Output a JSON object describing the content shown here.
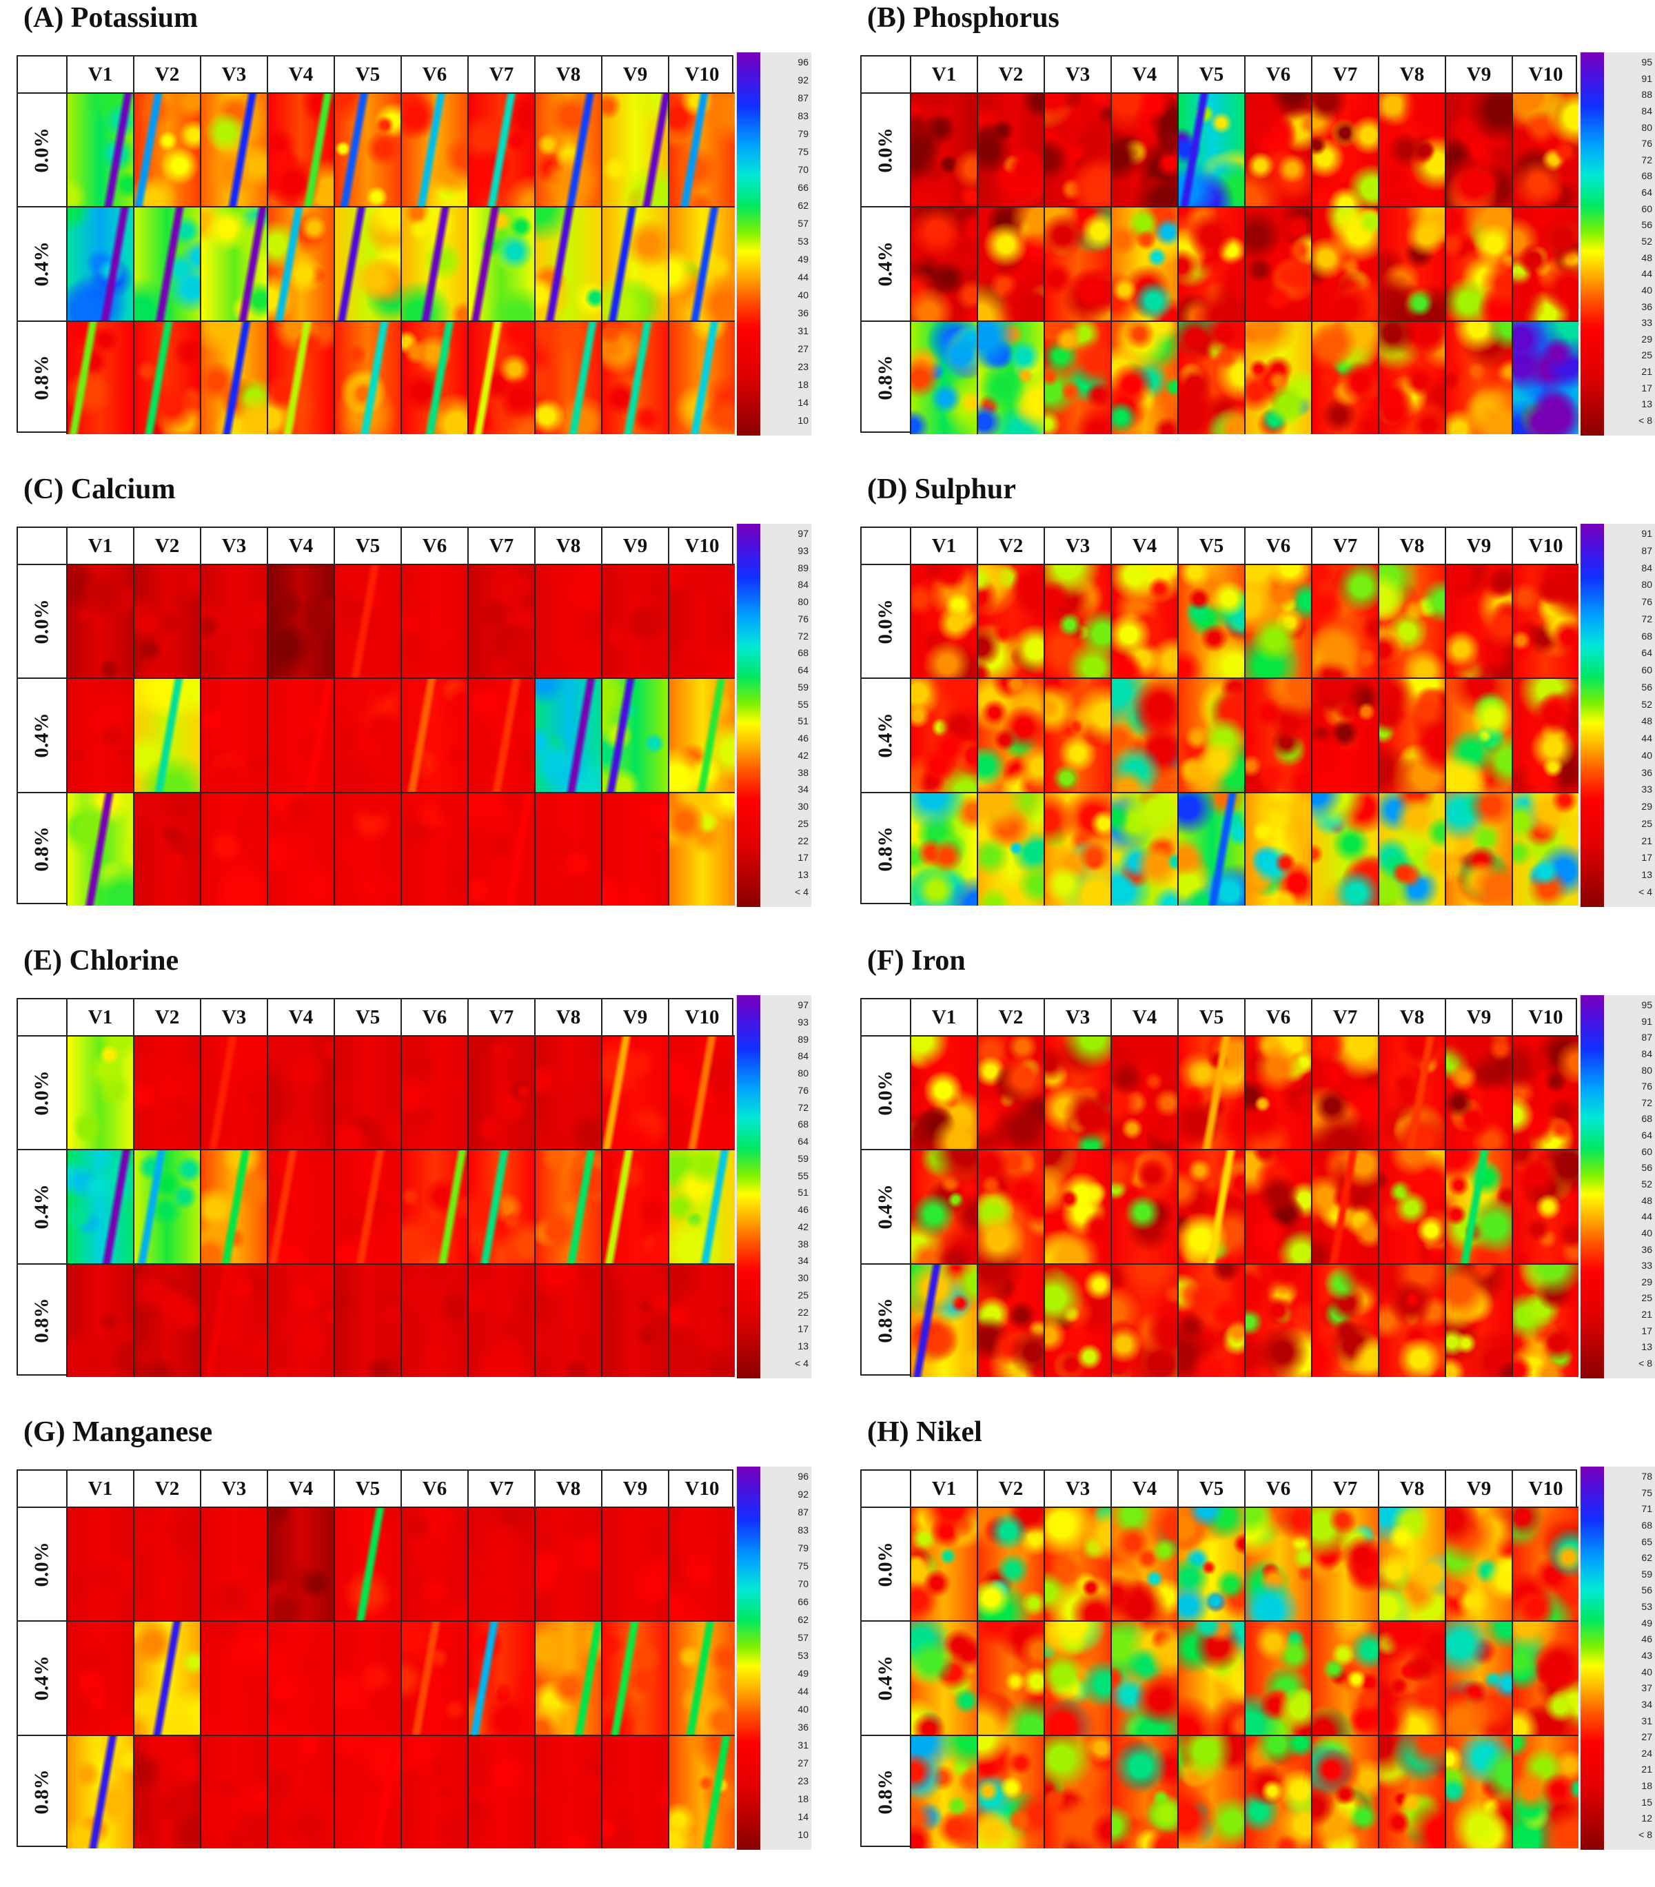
{
  "columns": [
    "V1",
    "V2",
    "V3",
    "V4",
    "V5",
    "V6",
    "V7",
    "V8",
    "V9",
    "V10"
  ],
  "rows": [
    "0.0%",
    "0.4%",
    "0.8%"
  ],
  "panels": [
    {
      "title": "(A) Potassium",
      "scale": [
        "96",
        "92",
        "87",
        "83",
        "79",
        "75",
        "70",
        "66",
        "62",
        "57",
        "53",
        "49",
        "44",
        "40",
        "36",
        "31",
        "27",
        "23",
        "18",
        "14",
        "10"
      ],
      "cells": [
        [
          0.6,
          0.38,
          0.42,
          0.32,
          0.38,
          0.4,
          0.3,
          0.4,
          0.48,
          0.38
        ],
        [
          0.72,
          0.58,
          0.55,
          0.4,
          0.5,
          0.48,
          0.55,
          0.5,
          0.48,
          0.45
        ],
        [
          0.3,
          0.3,
          0.42,
          0.32,
          0.36,
          0.32,
          0.3,
          0.34,
          0.34,
          0.38
        ]
      ],
      "stripes": [
        [
          0.7,
          0.7,
          0.8,
          0.5,
          0.8,
          0.6,
          0.7,
          0.8,
          0.9,
          0.7
        ],
        [
          0.9,
          0.9,
          0.8,
          0.6,
          0.8,
          0.9,
          0.9,
          0.8,
          0.7,
          0.7
        ],
        [
          0.5,
          0.6,
          0.8,
          0.4,
          0.6,
          0.6,
          0.4,
          0.6,
          0.6,
          0.6
        ]
      ],
      "texture": 0.1
    },
    {
      "title": "(B) Phosphorus",
      "scale": [
        "95",
        "91",
        "88",
        "84",
        "80",
        "76",
        "72",
        "68",
        "64",
        "60",
        "56",
        "52",
        "48",
        "44",
        "40",
        "36",
        "33",
        "29",
        "25",
        "21",
        "17",
        "13",
        "< 8"
      ],
      "cells": [
        [
          0.12,
          0.14,
          0.16,
          0.16,
          0.68,
          0.18,
          0.26,
          0.26,
          0.14,
          0.2
        ],
        [
          0.14,
          0.2,
          0.34,
          0.44,
          0.28,
          0.2,
          0.24,
          0.28,
          0.32,
          0.22
        ],
        [
          0.6,
          0.58,
          0.34,
          0.4,
          0.32,
          0.48,
          0.3,
          0.3,
          0.32,
          0.78
        ]
      ],
      "stripes": [
        [
          0,
          0,
          0,
          0,
          0.4,
          0,
          0,
          0,
          0,
          0
        ],
        [
          0,
          0,
          0,
          0,
          0,
          0,
          0,
          0,
          0,
          0
        ],
        [
          0,
          0,
          0,
          0,
          0,
          0,
          0,
          0,
          0,
          0
        ]
      ],
      "texture": 0.22
    },
    {
      "title": "(C) Calcium",
      "scale": [
        "97",
        "93",
        "89",
        "84",
        "80",
        "76",
        "72",
        "68",
        "64",
        "59",
        "55",
        "51",
        "46",
        "42",
        "38",
        "34",
        "30",
        "25",
        "22",
        "17",
        "13",
        "< 4"
      ],
      "cells": [
        [
          0.12,
          0.12,
          0.15,
          0.05,
          0.2,
          0.2,
          0.14,
          0.18,
          0.16,
          0.16
        ],
        [
          0.2,
          0.5,
          0.22,
          0.22,
          0.22,
          0.26,
          0.22,
          0.7,
          0.6,
          0.44
        ],
        [
          0.56,
          0.16,
          0.22,
          0.22,
          0.22,
          0.22,
          0.22,
          0.22,
          0.22,
          0.44
        ]
      ],
      "stripes": [
        [
          0,
          0,
          0,
          0,
          0.2,
          0,
          0,
          0,
          0,
          0
        ],
        [
          0,
          0.3,
          0,
          0.1,
          0,
          0.2,
          0.2,
          0.6,
          0.6,
          0.3
        ],
        [
          0.9,
          0,
          0,
          0,
          0,
          0,
          0.1,
          0,
          0,
          0
        ]
      ],
      "texture": 0.06
    },
    {
      "title": "(D) Sulphur",
      "scale": [
        "91",
        "87",
        "84",
        "80",
        "76",
        "72",
        "68",
        "64",
        "60",
        "56",
        "52",
        "48",
        "44",
        "40",
        "36",
        "33",
        "29",
        "25",
        "21",
        "17",
        "13",
        "< 4"
      ],
      "cells": [
        [
          0.26,
          0.28,
          0.3,
          0.28,
          0.4,
          0.38,
          0.34,
          0.34,
          0.26,
          0.3
        ],
        [
          0.3,
          0.38,
          0.34,
          0.42,
          0.38,
          0.3,
          0.24,
          0.32,
          0.4,
          0.26
        ],
        [
          0.54,
          0.48,
          0.46,
          0.52,
          0.6,
          0.46,
          0.5,
          0.5,
          0.44,
          0.5
        ]
      ],
      "stripes": [
        [
          0,
          0,
          0,
          0,
          0,
          0,
          0,
          0,
          0,
          0
        ],
        [
          0,
          0,
          0,
          0,
          0,
          0,
          0,
          0,
          0,
          0
        ],
        [
          0,
          0,
          0,
          0,
          0.4,
          0,
          0,
          0,
          0,
          0
        ]
      ],
      "texture": 0.2
    },
    {
      "title": "(E) Chlorine",
      "scale": [
        "97",
        "93",
        "89",
        "84",
        "80",
        "76",
        "72",
        "68",
        "64",
        "59",
        "55",
        "51",
        "46",
        "42",
        "38",
        "34",
        "30",
        "25",
        "22",
        "17",
        "13",
        "< 4"
      ],
      "cells": [
        [
          0.55,
          0.18,
          0.2,
          0.14,
          0.16,
          0.18,
          0.14,
          0.16,
          0.26,
          0.22
        ],
        [
          0.68,
          0.58,
          0.4,
          0.22,
          0.22,
          0.3,
          0.32,
          0.36,
          0.26,
          0.5
        ],
        [
          0.14,
          0.12,
          0.16,
          0.16,
          0.14,
          0.16,
          0.16,
          0.16,
          0.14,
          0.16
        ]
      ],
      "stripes": [
        [
          0,
          0,
          0.2,
          0,
          0,
          0,
          0,
          0,
          0.3,
          0.3
        ],
        [
          0.9,
          0.3,
          0.4,
          0.2,
          0.2,
          0.5,
          0.6,
          0.5,
          0.5,
          0.4
        ],
        [
          0,
          0,
          0.1,
          0,
          0,
          0,
          0,
          0,
          0,
          0
        ]
      ],
      "texture": 0.06
    },
    {
      "title": "(F) Iron",
      "scale": [
        "95",
        "91",
        "87",
        "84",
        "80",
        "76",
        "72",
        "68",
        "64",
        "60",
        "56",
        "52",
        "48",
        "44",
        "40",
        "36",
        "33",
        "29",
        "25",
        "21",
        "17",
        "13",
        "< 8"
      ],
      "cells": [
        [
          0.26,
          0.22,
          0.3,
          0.18,
          0.32,
          0.26,
          0.2,
          0.28,
          0.26,
          0.22
        ],
        [
          0.32,
          0.34,
          0.26,
          0.28,
          0.3,
          0.24,
          0.2,
          0.26,
          0.36,
          0.28
        ],
        [
          0.46,
          0.26,
          0.26,
          0.28,
          0.3,
          0.28,
          0.32,
          0.3,
          0.28,
          0.3
        ]
      ],
      "stripes": [
        [
          0,
          0,
          0,
          0,
          0.2,
          0,
          0,
          0.1,
          0,
          0
        ],
        [
          0,
          0,
          0,
          0,
          0.3,
          0,
          0.2,
          0,
          0.5,
          0
        ],
        [
          0.8,
          0,
          0,
          0,
          0,
          0,
          0,
          0,
          0,
          0
        ]
      ],
      "texture": 0.22
    },
    {
      "title": "(G) Manganese",
      "scale": [
        "96",
        "92",
        "87",
        "83",
        "79",
        "75",
        "70",
        "66",
        "62",
        "57",
        "53",
        "49",
        "44",
        "40",
        "36",
        "31",
        "27",
        "23",
        "18",
        "14",
        "10"
      ],
      "cells": [
        [
          0.18,
          0.18,
          0.2,
          0.08,
          0.24,
          0.18,
          0.18,
          0.18,
          0.18,
          0.18
        ],
        [
          0.2,
          0.46,
          0.22,
          0.22,
          0.22,
          0.24,
          0.3,
          0.4,
          0.34,
          0.4
        ],
        [
          0.46,
          0.14,
          0.2,
          0.2,
          0.22,
          0.2,
          0.2,
          0.2,
          0.2,
          0.4
        ]
      ],
      "stripes": [
        [
          0,
          0,
          0,
          0,
          0.7,
          0,
          0,
          0,
          0,
          0
        ],
        [
          0,
          0.8,
          0,
          0,
          0,
          0.2,
          0.8,
          0.4,
          0.5,
          0.4
        ],
        [
          0.8,
          0,
          0,
          0,
          0.1,
          0,
          0,
          0,
          0,
          0.4
        ]
      ],
      "texture": 0.06
    },
    {
      "title": "(H) Nikel",
      "scale": [
        "78",
        "75",
        "71",
        "68",
        "65",
        "62",
        "59",
        "56",
        "53",
        "49",
        "46",
        "43",
        "40",
        "37",
        "34",
        "31",
        "27",
        "24",
        "21",
        "18",
        "15",
        "12",
        "< 8"
      ],
      "cells": [
        [
          0.4,
          0.38,
          0.36,
          0.4,
          0.46,
          0.42,
          0.42,
          0.44,
          0.42,
          0.36
        ],
        [
          0.42,
          0.36,
          0.38,
          0.38,
          0.42,
          0.36,
          0.38,
          0.34,
          0.4,
          0.36
        ],
        [
          0.44,
          0.38,
          0.36,
          0.36,
          0.38,
          0.36,
          0.38,
          0.36,
          0.38,
          0.38
        ]
      ],
      "stripes": [
        [
          0,
          0,
          0,
          0,
          0,
          0,
          0,
          0,
          0,
          0
        ],
        [
          0,
          0,
          0,
          0,
          0,
          0,
          0,
          0,
          0,
          0
        ],
        [
          0,
          0,
          0,
          0,
          0,
          0,
          0,
          0,
          0,
          0
        ]
      ],
      "texture": 0.22
    }
  ]
}
